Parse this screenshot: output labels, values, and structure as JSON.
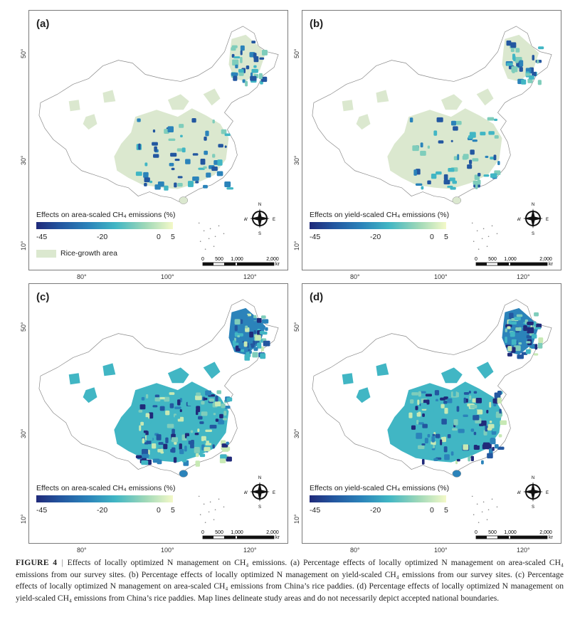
{
  "panels": [
    {
      "id": "a",
      "label": "(a)",
      "legend_title": "Effects on area-scaled CH₄ emissions (%)",
      "ticks": [
        "-45",
        "-20",
        "0",
        "5"
      ],
      "show_rice": true
    },
    {
      "id": "b",
      "label": "(b)",
      "legend_title": "Effects on yield-scaled CH₄ emissions (%)",
      "ticks": [
        "-45",
        "-20",
        "0",
        "5"
      ],
      "show_rice": false
    },
    {
      "id": "c",
      "label": "(c)",
      "legend_title": "Effects on area-scaled CH₄ emissions (%)",
      "ticks": [
        "-45",
        "-20",
        "0",
        "5"
      ],
      "show_rice": false
    },
    {
      "id": "d",
      "label": "(d)",
      "legend_title": "Effects on yield-scaled CH₄ emissions (%)",
      "ticks": [
        "-45",
        "-20",
        "0",
        "5"
      ],
      "show_rice": false
    }
  ],
  "rice_label": "Rice-growth area",
  "lat_labels": [
    "50°",
    "30°",
    "10°"
  ],
  "lon_labels": [
    "80°",
    "100°",
    "120°"
  ],
  "compass": {
    "n": "N",
    "s": "S",
    "e": "E",
    "w": "W"
  },
  "scale": {
    "labels": [
      "0",
      "500",
      "1,000",
      "2,000"
    ],
    "unit": "km"
  },
  "caption": {
    "figure": "FIGURE 4",
    "separator": "|",
    "text": "Effects of locally optimized N management on CH₄ emissions. (a) Percentage effects of locally optimized N management on area-scaled CH₄ emissions from our survey sites. (b) Percentage effects of locally optimized N management on yield-scaled CH₄ emissions from our survey sites. (c) Percentage effects of locally optimized N management on area-scaled CH₄ emissions from China’s rice paddies. (d) Percentage effects of locally optimized N management on yield-scaled CH₄ emissions from China’s rice paddies. Map lines delineate study areas and do not necessarily depict accepted national boundaries."
  },
  "colors": {
    "dark": "#202a7a",
    "mid": "#2b83ba",
    "teal": "#41b6c4",
    "light": "#9fd8b8",
    "rice": "#dbe8cf",
    "outline": "#8a8a8a"
  },
  "icons": [
    "compass-rose-icon",
    "scale-bar"
  ]
}
